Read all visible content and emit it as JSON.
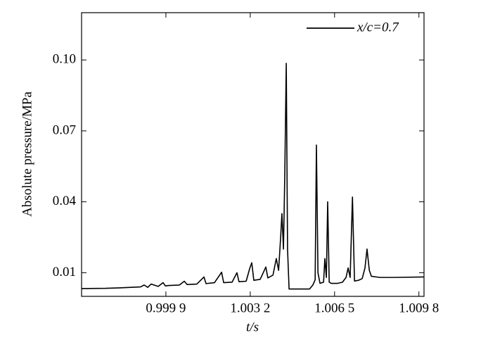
{
  "chart_data": {
    "type": "line",
    "x_label": "t/s",
    "y_label": "Absolute pressure/MPa",
    "xlim": [
      0.9966,
      1.01
    ],
    "ylim": [
      0,
      0.12
    ],
    "xticks": [
      {
        "value": 0.9999,
        "label": "0.999 9"
      },
      {
        "value": 1.0032,
        "label": "1.003 2"
      },
      {
        "value": 1.0065,
        "label": "1.006 5"
      },
      {
        "value": 1.0098,
        "label": "1.009 8"
      }
    ],
    "yticks": [
      0.01,
      0.04,
      0.07,
      {
        "value": 0.1,
        "label": "0.10"
      }
    ],
    "legend": "top-right",
    "x": [
      0.9966,
      0.99754,
      0.99809,
      0.99891,
      0.99905,
      0.99919,
      0.99932,
      0.9996,
      0.99979,
      0.99988,
      1.00001,
      1.00043,
      1.00062,
      1.00073,
      1.00111,
      1.00139,
      1.00147,
      1.0018,
      1.00208,
      1.00216,
      1.00249,
      1.00268,
      1.00276,
      1.00304,
      1.00318,
      1.00326,
      1.00334,
      1.00359,
      1.00381,
      1.00389,
      1.00409,
      1.00422,
      1.00431,
      1.00439,
      1.00444,
      1.0045,
      1.00455,
      1.00461,
      1.00466,
      1.00472,
      1.00552,
      1.00565,
      1.00574,
      1.00579,
      1.00585,
      1.00593,
      1.00607,
      1.00612,
      1.00618,
      1.00623,
      1.00629,
      1.00637,
      1.00662,
      1.00681,
      1.00695,
      1.00703,
      1.00711,
      1.0072,
      1.00728,
      1.00744,
      1.00758,
      1.00769,
      1.00777,
      1.00786,
      1.00794,
      1.00827,
      1.00882,
      1.01
    ],
    "series": [
      {
        "name": "x/c=0.7",
        "color": "#000000",
        "values": [
          0.0033,
          0.0034,
          0.0036,
          0.004,
          0.0048,
          0.0038,
          0.0052,
          0.0042,
          0.0058,
          0.0044,
          0.0046,
          0.0048,
          0.0064,
          0.005,
          0.0052,
          0.0082,
          0.0054,
          0.0058,
          0.0102,
          0.0058,
          0.006,
          0.01,
          0.0062,
          0.0064,
          0.0118,
          0.0142,
          0.0068,
          0.0072,
          0.0124,
          0.0078,
          0.009,
          0.016,
          0.011,
          0.025,
          0.035,
          0.02,
          0.05,
          0.0986,
          0.02,
          0.0031,
          0.0031,
          0.0048,
          0.007,
          0.064,
          0.01,
          0.0055,
          0.006,
          0.016,
          0.008,
          0.04,
          0.006,
          0.0055,
          0.0055,
          0.006,
          0.008,
          0.012,
          0.008,
          0.042,
          0.0065,
          0.0068,
          0.0075,
          0.012,
          0.02,
          0.011,
          0.0085,
          0.008,
          0.008,
          0.0082
        ]
      }
    ]
  }
}
